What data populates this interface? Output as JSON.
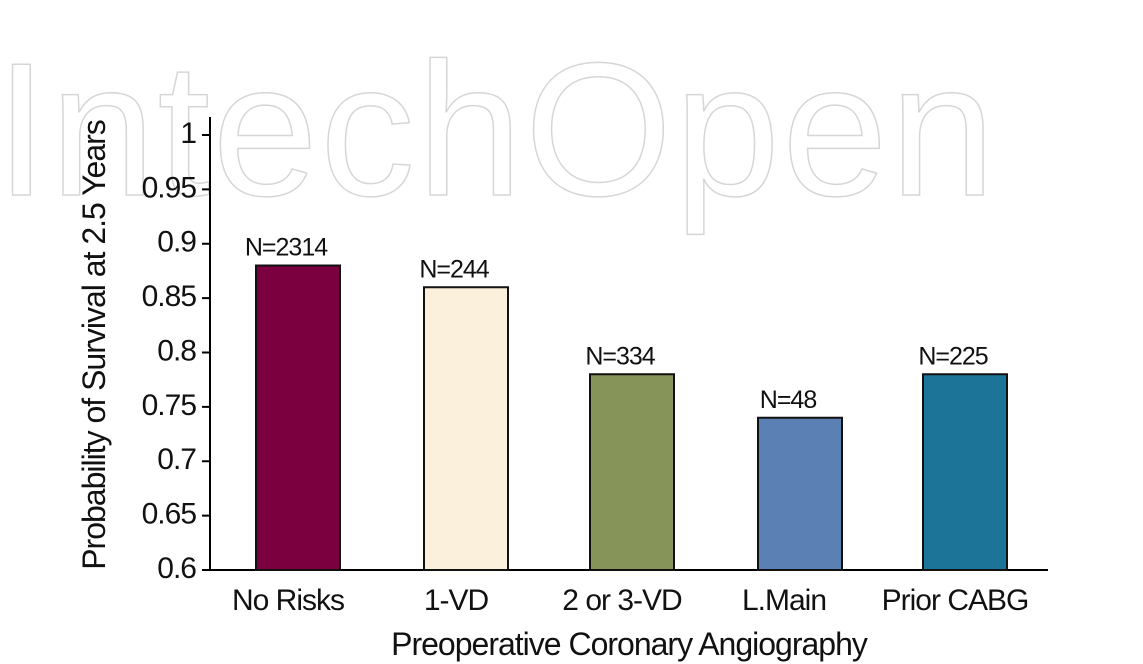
{
  "watermark": "IntechOpen",
  "chart_data": {
    "type": "bar",
    "x_label": "Preoperative Coronary Angiography",
    "y_label": "Probability of Survival at 2.5 Years",
    "categories": [
      "No Risks",
      "1-VD",
      "2 or 3-VD",
      "L.Main",
      "Prior CABG"
    ],
    "values": [
      0.88,
      0.86,
      0.78,
      0.74,
      0.78
    ],
    "annotations": [
      "N=2314",
      "N=244",
      "N=334",
      "N=48",
      "N=225"
    ],
    "colors": [
      "#7a0040",
      "#faf0dc",
      "#879459",
      "#5a80b4",
      "#1c7499"
    ],
    "ylim": [
      0.6,
      1
    ],
    "yticks": [
      0.6,
      0.65,
      0.7,
      0.75,
      0.8,
      0.85,
      0.9,
      0.95,
      1
    ],
    "grid": false
  }
}
